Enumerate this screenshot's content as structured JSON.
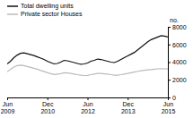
{
  "chart_data": {
    "type": "line",
    "title": "",
    "ylabel": "no.",
    "categories": [
      "Jun\n2009",
      null,
      null,
      null,
      null,
      null,
      null,
      null,
      null,
      null,
      null,
      null,
      "Dec\n2010",
      null,
      null,
      null,
      null,
      null,
      null,
      null,
      null,
      null,
      null,
      null,
      "Jun\n2012",
      null,
      null,
      null,
      null,
      null,
      null,
      null,
      null,
      null,
      null,
      null,
      "Dec\n2013",
      null,
      null,
      null,
      null,
      null,
      null,
      null,
      null,
      null,
      null,
      null,
      "Jun\n2015"
    ],
    "series": [
      {
        "name": "Total dwelling units",
        "color": "#111111",
        "values": [
          3800,
          4100,
          4500,
          4800,
          5000,
          5050,
          4950,
          4850,
          4750,
          4600,
          4450,
          4300,
          4100,
          3950,
          3800,
          3850,
          4000,
          4200,
          4150,
          4050,
          3950,
          3850,
          3750,
          3800,
          3900,
          4100,
          4200,
          4350,
          4300,
          4200,
          4100,
          4000,
          3950,
          4100,
          4300,
          4500,
          4700,
          4900,
          5100,
          5400,
          5700,
          6000,
          6300,
          6550,
          6700,
          6850,
          7000,
          6950,
          6850
        ]
      },
      {
        "name": "Private sector Houses",
        "color": "#bbbbbb",
        "values": [
          2900,
          3200,
          3450,
          3600,
          3650,
          3600,
          3500,
          3400,
          3300,
          3200,
          3050,
          2950,
          2800,
          2700,
          2600,
          2650,
          2700,
          2800,
          2780,
          2720,
          2650,
          2580,
          2520,
          2480,
          2500,
          2580,
          2650,
          2720,
          2720,
          2680,
          2640,
          2580,
          2520,
          2520,
          2580,
          2650,
          2720,
          2800,
          2880,
          2960,
          3020,
          3080,
          3120,
          3160,
          3200,
          3240,
          3260,
          3240,
          3220
        ]
      }
    ],
    "ylim": [
      0,
      8000
    ],
    "yticks": [
      0,
      2000,
      4000,
      6000,
      8000
    ],
    "grid": false,
    "legend": "upper left"
  }
}
